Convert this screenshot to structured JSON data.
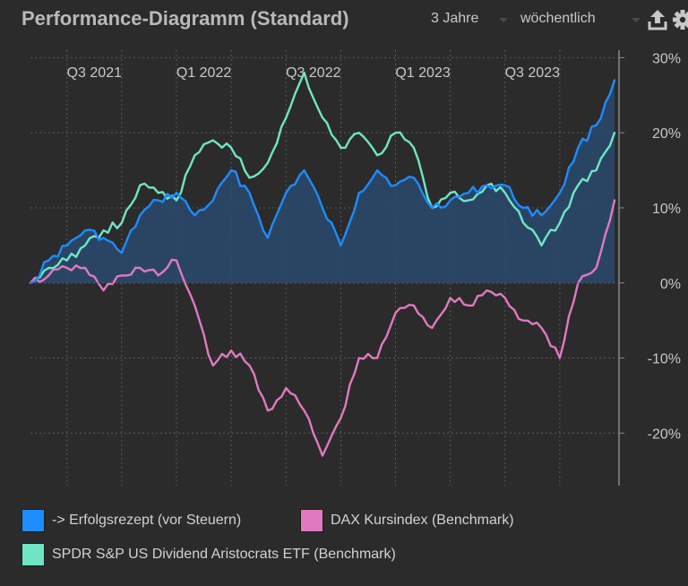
{
  "header": {
    "title": "Performance-Diagramm (Standard)",
    "period_select": "3 Jahre",
    "interval_select": "wöchentlich",
    "export_icon": "upload-icon",
    "settings_icon": "gear-icon"
  },
  "colors": {
    "background": "#2b2b2b",
    "series_portfolio": "#1e8cff",
    "series_dax": "#e07ac0",
    "series_spdr": "#6ee6c5",
    "area_fill": "#2a4a6e",
    "grid": "#5a5a5a",
    "text": "#c8c8c8"
  },
  "chart_data": {
    "type": "line",
    "title": "Performance-Diagramm (Standard)",
    "xlabel": "",
    "ylabel": "",
    "x_range": [
      "2021-05",
      "2024-01"
    ],
    "x_ticks": [
      "Q3 2021",
      "Q1 2022",
      "Q3 2022",
      "Q1 2023",
      "Q3 2023"
    ],
    "y_ticks": [
      "30%",
      "20%",
      "10%",
      "0%",
      "-10%",
      "-20%"
    ],
    "y_tick_values": [
      30,
      20,
      10,
      0,
      -10,
      -20
    ],
    "ylim": [
      -27,
      31
    ],
    "grid": true,
    "y_axis_position": "right",
    "legend_position": "bottom",
    "series": [
      {
        "name": "-> Erfolgsrezept (vor Steuern)",
        "filled_area": true,
        "points": [
          [
            "2021-05",
            0
          ],
          [
            "2021-06",
            3
          ],
          [
            "2021-07",
            5
          ],
          [
            "2021-08",
            7
          ],
          [
            "2021-09",
            6
          ],
          [
            "2021-10",
            4
          ],
          [
            "2021-11",
            9
          ],
          [
            "2021-12",
            11
          ],
          [
            "2022-01",
            12
          ],
          [
            "2022-02",
            9
          ],
          [
            "2022-03",
            11
          ],
          [
            "2022-04",
            15
          ],
          [
            "2022-05",
            12
          ],
          [
            "2022-06",
            6
          ],
          [
            "2022-07",
            12
          ],
          [
            "2022-08",
            15
          ],
          [
            "2022-09",
            10
          ],
          [
            "2022-10",
            5
          ],
          [
            "2022-11",
            12
          ],
          [
            "2022-12",
            15
          ],
          [
            "2023-01",
            13
          ],
          [
            "2023-02",
            14
          ],
          [
            "2023-03",
            10
          ],
          [
            "2023-04",
            11
          ],
          [
            "2023-05",
            12
          ],
          [
            "2023-06",
            13
          ],
          [
            "2023-07",
            13
          ],
          [
            "2023-08",
            10
          ],
          [
            "2023-09",
            9
          ],
          [
            "2023-10",
            12
          ],
          [
            "2023-11",
            18
          ],
          [
            "2023-12",
            21
          ],
          [
            "2024-01",
            27
          ]
        ]
      },
      {
        "name": "DAX Kursindex (Benchmark)",
        "filled_area": false,
        "points": [
          [
            "2021-05",
            0
          ],
          [
            "2021-06",
            1
          ],
          [
            "2021-07",
            2
          ],
          [
            "2021-08",
            2
          ],
          [
            "2021-09",
            -1
          ],
          [
            "2021-10",
            1
          ],
          [
            "2021-11",
            2
          ],
          [
            "2021-12",
            1
          ],
          [
            "2022-01",
            3
          ],
          [
            "2022-02",
            -3
          ],
          [
            "2022-03",
            -11
          ],
          [
            "2022-04",
            -9
          ],
          [
            "2022-05",
            -11
          ],
          [
            "2022-06",
            -17
          ],
          [
            "2022-07",
            -14
          ],
          [
            "2022-08",
            -17
          ],
          [
            "2022-09",
            -23
          ],
          [
            "2022-10",
            -18
          ],
          [
            "2022-11",
            -10
          ],
          [
            "2022-12",
            -10
          ],
          [
            "2023-01",
            -4
          ],
          [
            "2023-02",
            -3
          ],
          [
            "2023-03",
            -6
          ],
          [
            "2023-04",
            -2
          ],
          [
            "2023-05",
            -3
          ],
          [
            "2023-06",
            -1
          ],
          [
            "2023-07",
            -2
          ],
          [
            "2023-08",
            -5
          ],
          [
            "2023-09",
            -6
          ],
          [
            "2023-10",
            -10
          ],
          [
            "2023-11",
            0
          ],
          [
            "2023-12",
            2
          ],
          [
            "2024-01",
            11
          ]
        ]
      },
      {
        "name": "SPDR S&P US Dividend Aristocrats ETF (Benchmark)",
        "filled_area": false,
        "points": [
          [
            "2021-05",
            0
          ],
          [
            "2021-06",
            2
          ],
          [
            "2021-07",
            3
          ],
          [
            "2021-08",
            5
          ],
          [
            "2021-09",
            7
          ],
          [
            "2021-10",
            8
          ],
          [
            "2021-11",
            13
          ],
          [
            "2021-12",
            12
          ],
          [
            "2022-01",
            11
          ],
          [
            "2022-02",
            17
          ],
          [
            "2022-03",
            19
          ],
          [
            "2022-04",
            18
          ],
          [
            "2022-05",
            14
          ],
          [
            "2022-06",
            16
          ],
          [
            "2022-07",
            22
          ],
          [
            "2022-08",
            28
          ],
          [
            "2022-09",
            22
          ],
          [
            "2022-10",
            18
          ],
          [
            "2022-11",
            20
          ],
          [
            "2022-12",
            17
          ],
          [
            "2023-01",
            20
          ],
          [
            "2023-02",
            18
          ],
          [
            "2023-03",
            10
          ],
          [
            "2023-04",
            12
          ],
          [
            "2023-05",
            11
          ],
          [
            "2023-06",
            13
          ],
          [
            "2023-07",
            12
          ],
          [
            "2023-08",
            8
          ],
          [
            "2023-09",
            5
          ],
          [
            "2023-10",
            8
          ],
          [
            "2023-11",
            13
          ],
          [
            "2023-12",
            15
          ],
          [
            "2024-01",
            20
          ]
        ]
      }
    ]
  },
  "legend": [
    {
      "label": "-> Erfolgsrezept (vor Steuern)",
      "color": "#1e8cff"
    },
    {
      "label": "DAX Kursindex (Benchmark)",
      "color": "#e07ac0"
    },
    {
      "label": "SPDR S&P US Dividend Aristocrats ETF (Benchmark)",
      "color": "#6ee6c5"
    }
  ]
}
